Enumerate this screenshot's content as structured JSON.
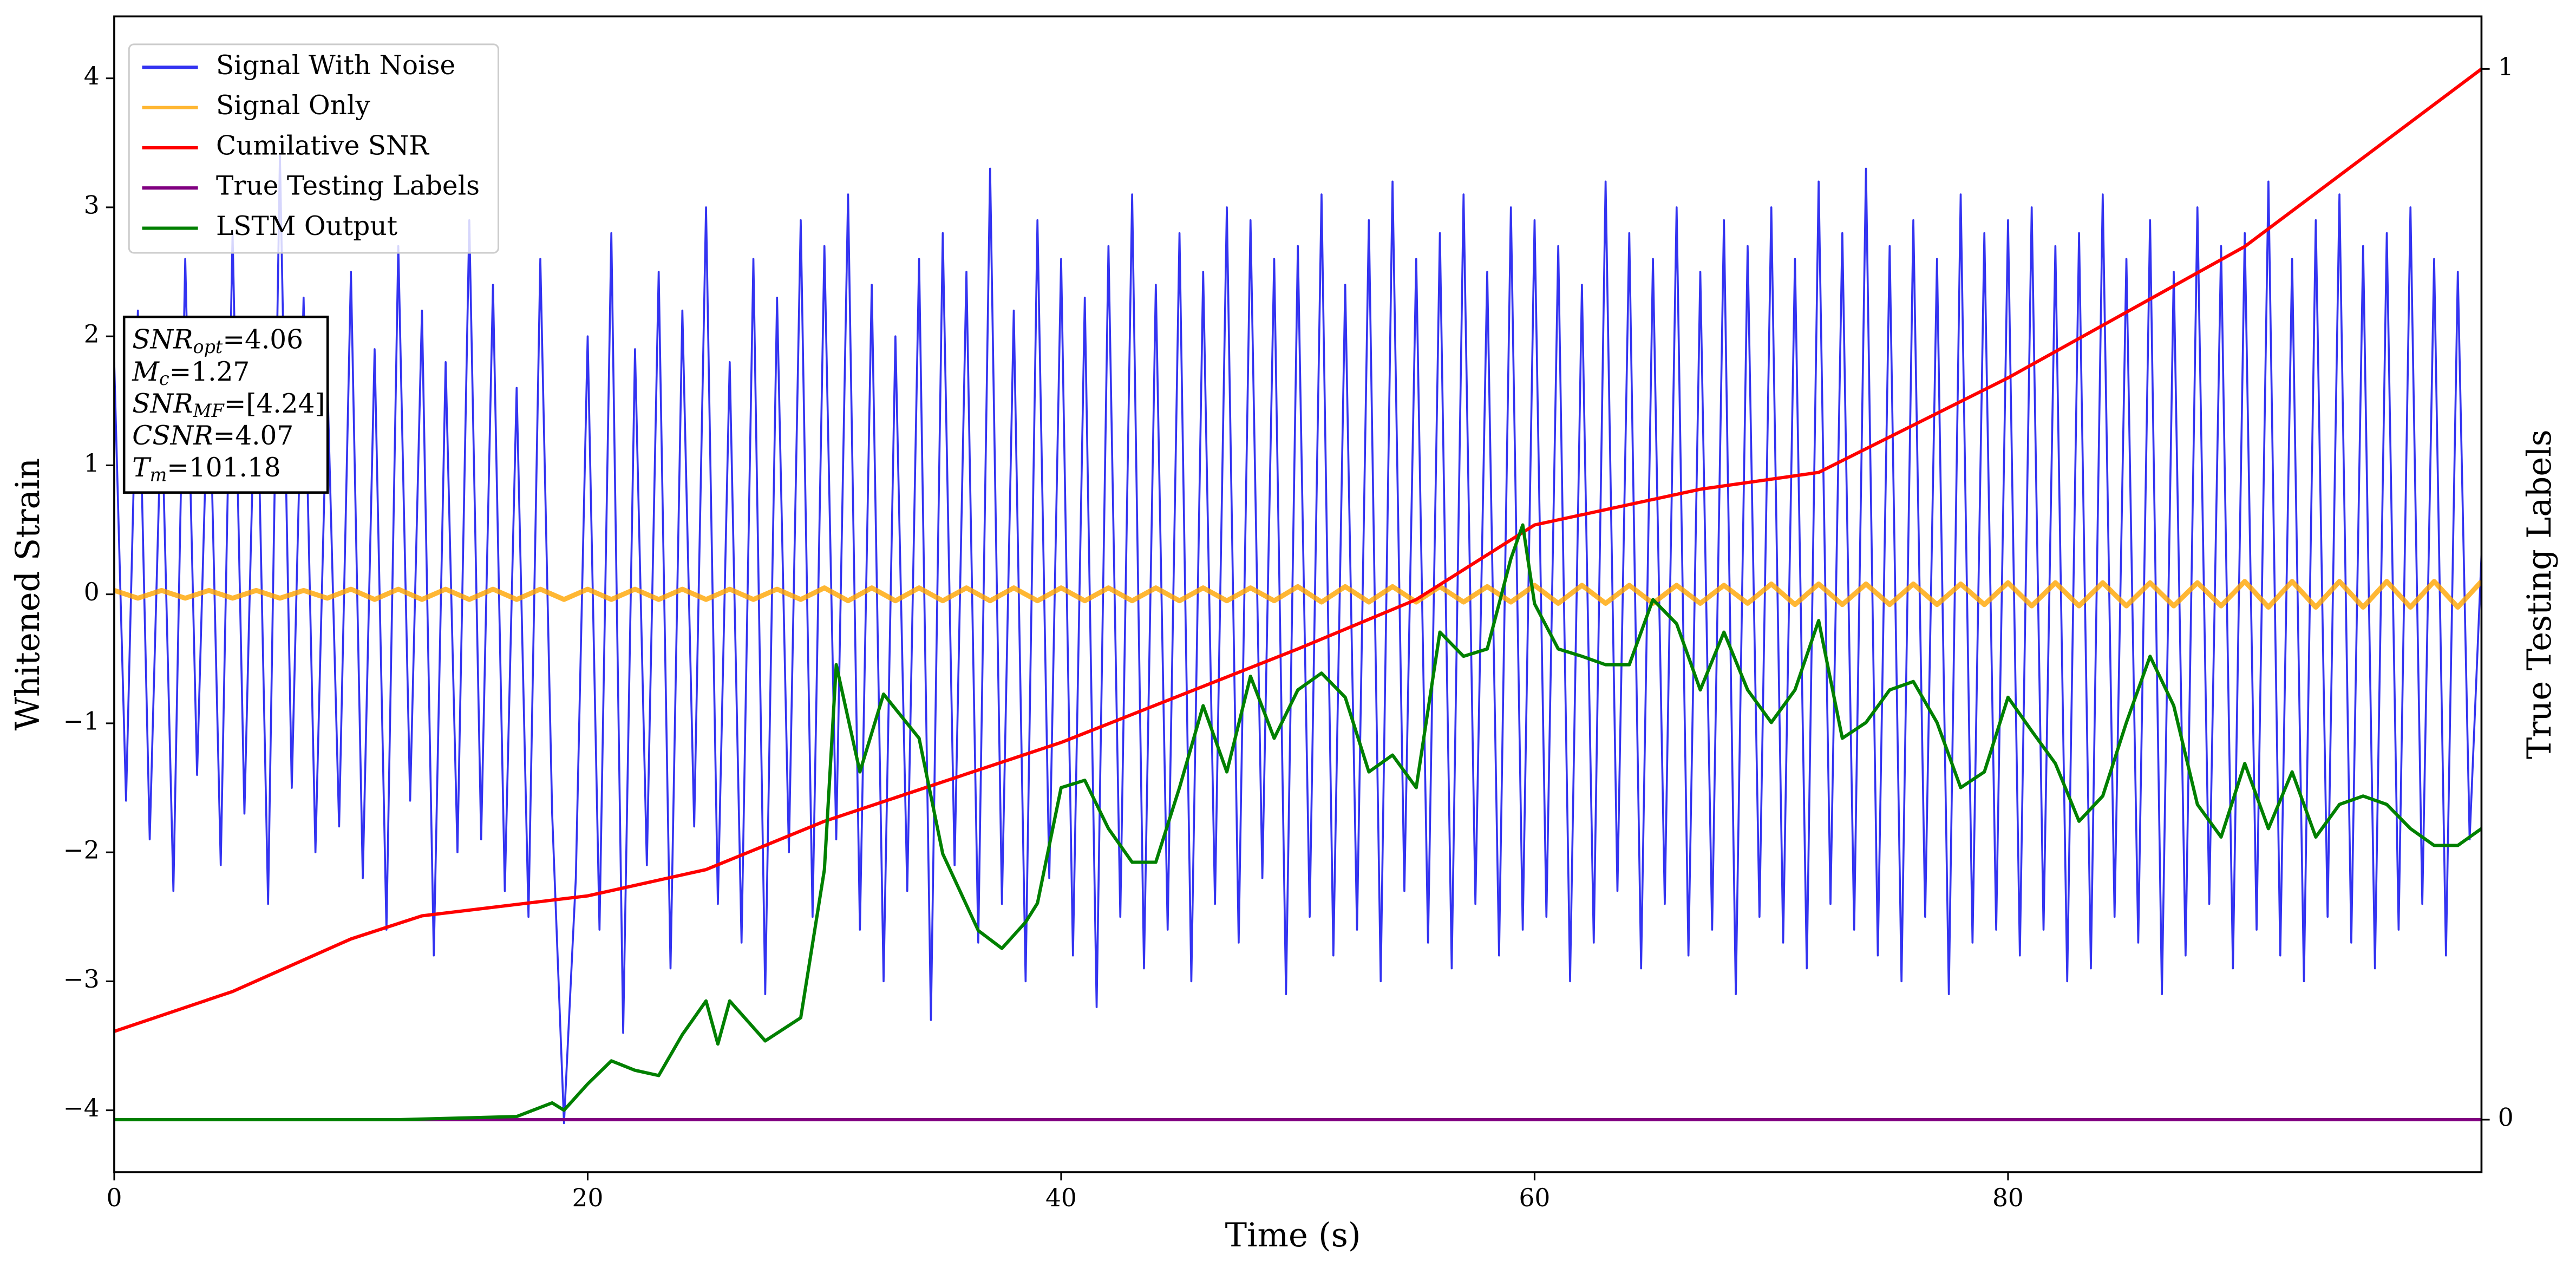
{
  "chart_data": {
    "type": "line",
    "xlabel": "Time (s)",
    "ylabel": "Whitened Strain",
    "y2label": "True Testing Labels",
    "xlim": [
      0,
      100
    ],
    "ylim": [
      -4.48,
      4.48
    ],
    "y2lim": [
      -0.05,
      1.05
    ],
    "xticks": [
      0,
      20,
      40,
      60,
      80
    ],
    "yticks": [
      -4,
      -3,
      -2,
      -1,
      0,
      1,
      2,
      3,
      4
    ],
    "y2ticks": [
      0,
      1
    ],
    "legend": "upper left",
    "annotations": [
      {
        "text": "SNR",
        "sub": "opt",
        "rest": "=4.06"
      },
      {
        "text": "M",
        "sub": "c",
        "rest": "=1.27"
      },
      {
        "text": "SNR",
        "sub": "MF",
        "rest": "=[4.24]"
      },
      {
        "text": "CSNR",
        "sub": null,
        "rest": "=4.07"
      },
      {
        "text": "T",
        "sub": "m",
        "rest": "=101.18"
      }
    ],
    "series": [
      {
        "name": "Signal With Noise",
        "color": "#0000ee",
        "axis": "y",
        "x": [
          0,
          0.5,
          1,
          1.5,
          2,
          2.5,
          3,
          3.5,
          4,
          4.5,
          5,
          5.5,
          6,
          6.5,
          7,
          7.5,
          8,
          8.5,
          9,
          9.5,
          10,
          10.5,
          11,
          11.5,
          12,
          12.5,
          13,
          13.5,
          14,
          14.5,
          15,
          15.5,
          16,
          16.5,
          17,
          17.5,
          18,
          18.5,
          19,
          19.5,
          20,
          20.5,
          21,
          21.5,
          22,
          22.5,
          23,
          23.5,
          24,
          24.5,
          25,
          25.5,
          26,
          26.5,
          27,
          27.5,
          28,
          28.5,
          29,
          29.5,
          30,
          30.5,
          31,
          31.5,
          32,
          32.5,
          33,
          33.5,
          34,
          34.5,
          35,
          35.5,
          36,
          36.5,
          37,
          37.5,
          38,
          38.5,
          39,
          39.5,
          40,
          40.5,
          41,
          41.5,
          42,
          42.5,
          43,
          43.5,
          44,
          44.5,
          45,
          45.5,
          46,
          46.5,
          47,
          47.5,
          48,
          48.5,
          49,
          49.5,
          50,
          50.5,
          51,
          51.5,
          52,
          52.5,
          53,
          53.5,
          54,
          54.5,
          55,
          55.5,
          56,
          56.5,
          57,
          57.5,
          58,
          58.5,
          59,
          59.5,
          60,
          60.5,
          61,
          61.5,
          62,
          62.5,
          63,
          63.5,
          64,
          64.5,
          65,
          65.5,
          66,
          66.5,
          67,
          67.5,
          68,
          68.5,
          69,
          69.5,
          70,
          70.5,
          71,
          71.5,
          72,
          72.5,
          73,
          73.5,
          74,
          74.5,
          75,
          75.5,
          76,
          76.5,
          77,
          77.5,
          78,
          78.5,
          79,
          79.5,
          80,
          80.5,
          81,
          81.5,
          82,
          82.5,
          83,
          83.5,
          84,
          84.5,
          85,
          85.5,
          86,
          86.5,
          87,
          87.5,
          88,
          88.5,
          89,
          89.5,
          90,
          90.5,
          91,
          91.5,
          92,
          92.5,
          93,
          93.5,
          94,
          94.5,
          95,
          95.5,
          96,
          96.5,
          97,
          97.5,
          98,
          98.5,
          99,
          99.5,
          100
        ],
        "values": [
          1.8,
          -1.6,
          2.2,
          -1.9,
          1.5,
          -2.3,
          2.6,
          -1.4,
          1.9,
          -2.1,
          2.8,
          -1.7,
          2.1,
          -2.4,
          3.4,
          -1.5,
          2.3,
          -2.0,
          1.7,
          -1.8,
          2.5,
          -2.2,
          1.9,
          -2.6,
          2.7,
          -1.6,
          2.2,
          -2.8,
          1.8,
          -2.0,
          2.9,
          -1.9,
          2.4,
          -2.3,
          1.6,
          -2.5,
          2.6,
          -1.7,
          -4.1,
          -2.2,
          2.0,
          -2.6,
          2.8,
          -3.4,
          1.9,
          -2.1,
          2.5,
          -2.9,
          2.2,
          -1.8,
          3.0,
          -2.4,
          1.8,
          -2.7,
          2.6,
          -3.1,
          2.3,
          -2.0,
          2.9,
          -2.5,
          2.7,
          -1.9,
          3.1,
          -2.6,
          2.4,
          -3.0,
          2.0,
          -2.3,
          2.6,
          -3.3,
          2.8,
          -2.1,
          2.5,
          -2.7,
          3.3,
          -2.4,
          2.2,
          -3.0,
          2.9,
          -2.2,
          2.6,
          -2.8,
          2.3,
          -3.2,
          2.7,
          -2.5,
          3.1,
          -2.9,
          2.4,
          -2.6,
          2.8,
          -3.0,
          2.5,
          -2.4,
          3.0,
          -2.7,
          2.9,
          -2.2,
          2.6,
          -3.1,
          2.7,
          -2.5,
          3.1,
          -2.8,
          2.4,
          -2.6,
          2.9,
          -3.0,
          3.2,
          -2.3,
          2.6,
          -2.7,
          2.8,
          -2.9,
          3.1,
          -2.4,
          2.5,
          -2.8,
          3.0,
          -2.6,
          2.9,
          -2.5,
          2.7,
          -3.0,
          2.4,
          -2.7,
          3.2,
          -2.3,
          2.8,
          -2.9,
          2.6,
          -2.4,
          3.0,
          -2.8,
          2.5,
          -2.6,
          2.9,
          -3.1,
          2.7,
          -2.5,
          3.0,
          -2.7,
          2.6,
          -2.9,
          3.2,
          -2.4,
          2.8,
          -2.6,
          3.3,
          -2.8,
          2.7,
          -3.0,
          2.9,
          -2.5,
          2.6,
          -3.1,
          3.1,
          -2.7,
          2.8,
          -2.6,
          2.9,
          -2.8,
          3.0,
          -2.6,
          2.7,
          -3.0,
          2.8,
          -2.9,
          3.1,
          -2.5,
          2.6,
          -2.7,
          2.9,
          -3.1,
          2.5,
          -2.8,
          3.0,
          -2.4,
          2.7,
          -2.9,
          2.8,
          -2.6,
          3.2,
          -2.8,
          2.6,
          -3.0,
          2.9,
          -2.5,
          3.1,
          -2.7,
          2.7,
          -2.9,
          2.8,
          -2.6,
          3.0,
          -2.4,
          2.6,
          -2.8,
          2.5,
          -1.9,
          0.3
        ]
      },
      {
        "name": "Signal Only",
        "color": "#ffa500",
        "axis": "y",
        "x": [
          0,
          1,
          2,
          3,
          4,
          5,
          6,
          7,
          8,
          9,
          10,
          11,
          12,
          13,
          14,
          15,
          16,
          17,
          18,
          19,
          20,
          21,
          22,
          23,
          24,
          25,
          26,
          27,
          28,
          29,
          30,
          31,
          32,
          33,
          34,
          35,
          36,
          37,
          38,
          39,
          40,
          41,
          42,
          43,
          44,
          45,
          46,
          47,
          48,
          49,
          50,
          51,
          52,
          53,
          54,
          55,
          56,
          57,
          58,
          59,
          60,
          61,
          62,
          63,
          64,
          65,
          66,
          67,
          68,
          69,
          70,
          71,
          72,
          73,
          74,
          75,
          76,
          77,
          78,
          79,
          80,
          81,
          82,
          83,
          84,
          85,
          86,
          87,
          88,
          89,
          90,
          91,
          92,
          93,
          94,
          95,
          96,
          97,
          98,
          99,
          100
        ],
        "values": [
          0.03,
          -0.03,
          0.03,
          -0.03,
          0.03,
          -0.03,
          0.03,
          -0.03,
          0.03,
          -0.03,
          0.04,
          -0.04,
          0.04,
          -0.04,
          0.04,
          -0.04,
          0.04,
          -0.04,
          0.04,
          -0.04,
          0.04,
          -0.04,
          0.04,
          -0.04,
          0.04,
          -0.04,
          0.04,
          -0.04,
          0.04,
          -0.04,
          0.05,
          -0.05,
          0.05,
          -0.05,
          0.05,
          -0.05,
          0.05,
          -0.05,
          0.05,
          -0.05,
          0.05,
          -0.05,
          0.05,
          -0.05,
          0.05,
          -0.05,
          0.05,
          -0.05,
          0.05,
          -0.05,
          0.06,
          -0.06,
          0.06,
          -0.06,
          0.06,
          -0.06,
          0.06,
          -0.06,
          0.06,
          -0.06,
          0.07,
          -0.07,
          0.07,
          -0.07,
          0.07,
          -0.07,
          0.07,
          -0.07,
          0.07,
          -0.07,
          0.08,
          -0.08,
          0.08,
          -0.08,
          0.08,
          -0.08,
          0.08,
          -0.08,
          0.08,
          -0.08,
          0.09,
          -0.09,
          0.09,
          -0.09,
          0.09,
          -0.09,
          0.09,
          -0.09,
          0.09,
          -0.09,
          0.1,
          -0.1,
          0.1,
          -0.1,
          0.1,
          -0.1,
          0.1,
          -0.1,
          0.1,
          -0.1,
          0.1
        ]
      },
      {
        "name": "Cumilative SNR",
        "color": "#ff0000",
        "axis": "y2",
        "x": [
          0,
          5,
          10,
          13,
          20,
          25,
          30,
          40,
          50,
          55,
          60,
          67,
          72,
          80,
          90,
          100
        ],
        "values": [
          0.084,
          0.122,
          0.172,
          0.194,
          0.213,
          0.238,
          0.284,
          0.359,
          0.448,
          0.495,
          0.566,
          0.6,
          0.616,
          0.706,
          0.831,
          1.0
        ]
      },
      {
        "name": "True Testing Labels",
        "color": "#800080",
        "axis": "y2",
        "x": [
          0,
          100
        ],
        "values": [
          0,
          0
        ]
      },
      {
        "name": "LSTM Output",
        "color": "#008000",
        "axis": "y2",
        "x": [
          0,
          12,
          17,
          18.5,
          19,
          20,
          21,
          22,
          23,
          24,
          25,
          25.5,
          26,
          27.5,
          29,
          30,
          30.5,
          31.5,
          32.5,
          34,
          35,
          36.5,
          37.5,
          38.5,
          39,
          40,
          41,
          42,
          43,
          44,
          45,
          46,
          47,
          48,
          49,
          50,
          51,
          52,
          53,
          54,
          55,
          56,
          57,
          58,
          59,
          59.5,
          60,
          61,
          62,
          63,
          64,
          65,
          66,
          67,
          68,
          69,
          70,
          71,
          72,
          73,
          74,
          75,
          76,
          77,
          78,
          79,
          80,
          81,
          82,
          83,
          84,
          85,
          86,
          87,
          88,
          89,
          90,
          91,
          92,
          93,
          94,
          95,
          96,
          97,
          98,
          99,
          100
        ],
        "values": [
          0,
          0,
          0.003,
          0.016,
          0.009,
          0.034,
          0.056,
          0.047,
          0.042,
          0.081,
          0.113,
          0.072,
          0.113,
          0.075,
          0.097,
          0.238,
          0.433,
          0.331,
          0.405,
          0.363,
          0.253,
          0.18,
          0.163,
          0.188,
          0.206,
          0.316,
          0.323,
          0.277,
          0.245,
          0.245,
          0.316,
          0.394,
          0.331,
          0.422,
          0.363,
          0.409,
          0.425,
          0.402,
          0.331,
          0.347,
          0.316,
          0.464,
          0.441,
          0.448,
          0.534,
          0.566,
          0.491,
          0.448,
          0.441,
          0.433,
          0.433,
          0.495,
          0.472,
          0.409,
          0.464,
          0.409,
          0.378,
          0.409,
          0.475,
          0.363,
          0.378,
          0.409,
          0.417,
          0.378,
          0.316,
          0.331,
          0.402,
          0.37,
          0.339,
          0.284,
          0.308,
          0.378,
          0.441,
          0.394,
          0.3,
          0.269,
          0.339,
          0.277,
          0.331,
          0.269,
          0.3,
          0.308,
          0.3,
          0.277,
          0.261,
          0.261,
          0.277
        ]
      }
    ]
  }
}
